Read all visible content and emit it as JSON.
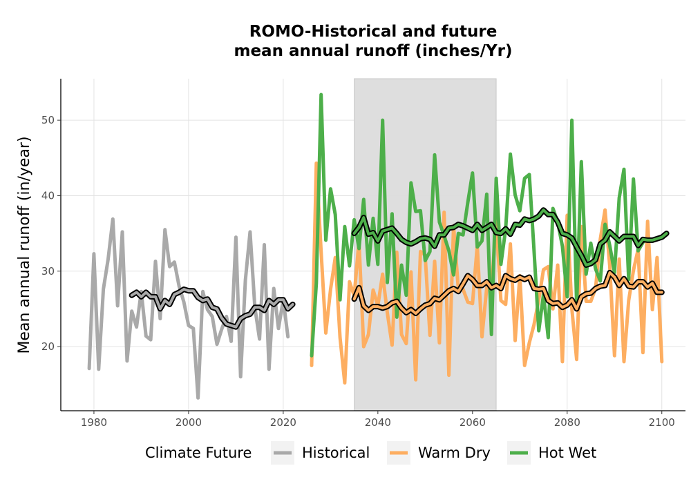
{
  "chart_data": {
    "type": "line",
    "title": [
      "ROMO-Historical and future",
      "mean annual runoff (inches/Yr)"
    ],
    "xlabel": "",
    "ylabel": "Mean annual runoff (in/year)",
    "xlim": [
      1973,
      2105
    ],
    "ylim": [
      11.5,
      55.5
    ],
    "x_ticks": [
      1980,
      2000,
      2020,
      2040,
      2060,
      2080,
      2100
    ],
    "y_ticks": [
      20,
      30,
      40,
      50
    ],
    "grid": true,
    "shaded_period": [
      2035,
      2065
    ],
    "legend": {
      "title": "Climate Future",
      "placement": "bottom",
      "entries": [
        "Historical",
        "Warm Dry",
        "Hot Wet"
      ]
    },
    "colors": {
      "Historical": "#a9a9a9",
      "Warm Dry": "#fdae61",
      "Hot Wet": "#4daf4a",
      "smooth": "#000000",
      "shade": "#dcdcdc"
    },
    "series": [
      {
        "name": "Historical",
        "x_start": 1979,
        "values": [
          17.1,
          32.3,
          17.0,
          27.6,
          31.6,
          36.9,
          25.4,
          35.2,
          18.1,
          24.7,
          22.6,
          27.3,
          21.4,
          20.9,
          31.3,
          23.7,
          35.5,
          30.6,
          31.2,
          28.0,
          25.9,
          22.8,
          22.4,
          13.2,
          27.3,
          24.9,
          24.0,
          20.3,
          22.3,
          24.0,
          20.7,
          34.5,
          16.0,
          28.8,
          35.2,
          25.2,
          21.0,
          33.5,
          17.0,
          27.7,
          22.4,
          26.2,
          21.3
        ]
      },
      {
        "name": "Warm Dry",
        "x_start": 2026,
        "values": [
          17.5,
          44.3,
          32.6,
          21.8,
          27.6,
          31.8,
          21.2,
          15.2,
          28.6,
          26.7,
          34.0,
          20.0,
          21.6,
          27.5,
          25.4,
          29.6,
          24.5,
          20.2,
          32.5,
          21.6,
          20.4,
          29.9,
          15.6,
          32.6,
          32.1,
          21.5,
          31.3,
          20.5,
          37.8,
          16.2,
          36.0,
          27.6,
          27.6,
          25.9,
          25.7,
          33.4,
          21.3,
          27.8,
          27.6,
          36.7,
          26.1,
          25.6,
          33.6,
          20.8,
          29.4,
          17.5,
          20.5,
          22.9,
          26.2,
          30.2,
          30.6,
          25.0,
          30.8,
          18.0,
          37.4,
          25.0,
          18.3,
          35.9,
          26.0,
          26.0,
          27.7,
          34.2,
          38.1,
          30.7,
          18.8,
          31.6,
          18.0,
          26.1,
          30.1,
          32.9,
          19.2,
          36.6,
          24.9,
          31.8,
          18.0
        ]
      },
      {
        "name": "Hot Wet",
        "x_start": 2026,
        "values": [
          18.8,
          28.4,
          53.4,
          34.1,
          40.9,
          37.5,
          26.2,
          35.9,
          30.7,
          36.8,
          33.0,
          39.5,
          30.8,
          37.0,
          30.9,
          50.0,
          28.5,
          37.6,
          23.9,
          30.8,
          26.8,
          41.7,
          37.9,
          38.0,
          31.4,
          32.6,
          45.4,
          36.5,
          34.7,
          32.7,
          29.5,
          35.0,
          34.8,
          39.1,
          43.0,
          33.2,
          34.0,
          40.2,
          21.6,
          42.3,
          30.9,
          35.6,
          45.5,
          40.1,
          38.0,
          42.3,
          42.8,
          32.8,
          22.1,
          26.9,
          21.2,
          38.3,
          36.5,
          33.3,
          26.6,
          50.0,
          25.5,
          44.5,
          29.6,
          33.7,
          30.3,
          28.7,
          36.2,
          33.4,
          29.8,
          39.7,
          43.5,
          28.9,
          42.2,
          32.7,
          33.8
        ]
      },
      {
        "name": "Historical smoothed",
        "x_start": 1988,
        "values": [
          26.8,
          27.2,
          26.6,
          27.2,
          26.6,
          26.6,
          25.0,
          26.1,
          25.6,
          26.9,
          27.2,
          27.6,
          27.4,
          27.4,
          26.5,
          26.1,
          26.3,
          25.2,
          25.0,
          23.8,
          23.0,
          22.8,
          22.6,
          23.7,
          24.1,
          24.3,
          25.2,
          25.2,
          24.8,
          26.1,
          25.6,
          26.2,
          26.2,
          25.0,
          25.6
        ]
      },
      {
        "name": "Warm Dry smoothed",
        "x_start": 2035,
        "values": [
          26.3,
          27.8,
          25.4,
          24.8,
          25.3,
          25.3,
          25.1,
          25.3,
          25.8,
          26.0,
          25.1,
          24.5,
          24.9,
          24.4,
          25.0,
          25.5,
          25.7,
          26.4,
          26.2,
          26.8,
          27.4,
          27.7,
          27.3,
          28.3,
          29.4,
          28.9,
          28.1,
          28.1,
          28.6,
          27.8,
          28.1,
          27.7,
          29.4,
          29.0,
          28.8,
          29.2,
          28.9,
          29.2,
          27.7,
          27.6,
          27.7,
          26.1,
          25.7,
          25.8,
          25.2,
          25.5,
          26.2,
          25.0,
          26.6,
          27.0,
          27.1,
          27.7,
          28.0,
          28.1,
          29.8,
          29.2,
          28.1,
          29.0,
          28.0,
          27.9,
          28.6,
          28.6,
          27.9,
          28.4,
          27.2,
          27.2
        ]
      },
      {
        "name": "Hot Wet smoothed",
        "x_start": 2035,
        "values": [
          35.0,
          35.8,
          37.1,
          34.9,
          35.1,
          34.0,
          35.3,
          35.5,
          35.7,
          35.0,
          34.2,
          33.8,
          33.6,
          33.9,
          34.3,
          34.4,
          34.2,
          33.3,
          34.8,
          34.8,
          35.7,
          35.8,
          36.2,
          36.0,
          35.7,
          35.4,
          36.2,
          35.4,
          35.8,
          36.2,
          35.1,
          35.0,
          35.6,
          34.9,
          36.2,
          36.1,
          36.9,
          36.7,
          36.9,
          37.3,
          38.1,
          37.5,
          37.5,
          36.5,
          35.0,
          34.8,
          34.4,
          33.2,
          32.1,
          30.8,
          31.0,
          31.5,
          33.6,
          34.1,
          35.2,
          34.6,
          34.0,
          34.6,
          34.6,
          34.6,
          33.4,
          34.2,
          34.1,
          34.1,
          34.3,
          34.5,
          35.0
        ]
      }
    ]
  }
}
